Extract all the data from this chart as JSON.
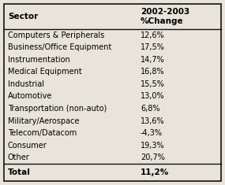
{
  "header_col1": "Sector",
  "header_col2": "2002-2003\n%Change",
  "rows": [
    [
      "Computers & Peripherals",
      "12,6%"
    ],
    [
      "Business/Office Equipment",
      "17,5%"
    ],
    [
      "Instrumentation",
      "14,7%"
    ],
    [
      "Medical Equipment",
      "16,8%"
    ],
    [
      "Industrial",
      "15,5%"
    ],
    [
      "Automotive",
      "13,0%"
    ],
    [
      "Transportation (non-auto)",
      "6,8%"
    ],
    [
      "Military/Aerospace",
      "13,6%"
    ],
    [
      "Telecom/Datacom",
      "-4,3%"
    ],
    [
      "Consumer",
      "19,3%"
    ],
    [
      "Other",
      "20,7%"
    ]
  ],
  "total_label": "Total",
  "total_value": "11,2%",
  "background_color": "#e8e4da",
  "border_color": "#111111",
  "header_fontsize": 7.5,
  "row_fontsize": 7.0,
  "total_fontsize": 7.5
}
